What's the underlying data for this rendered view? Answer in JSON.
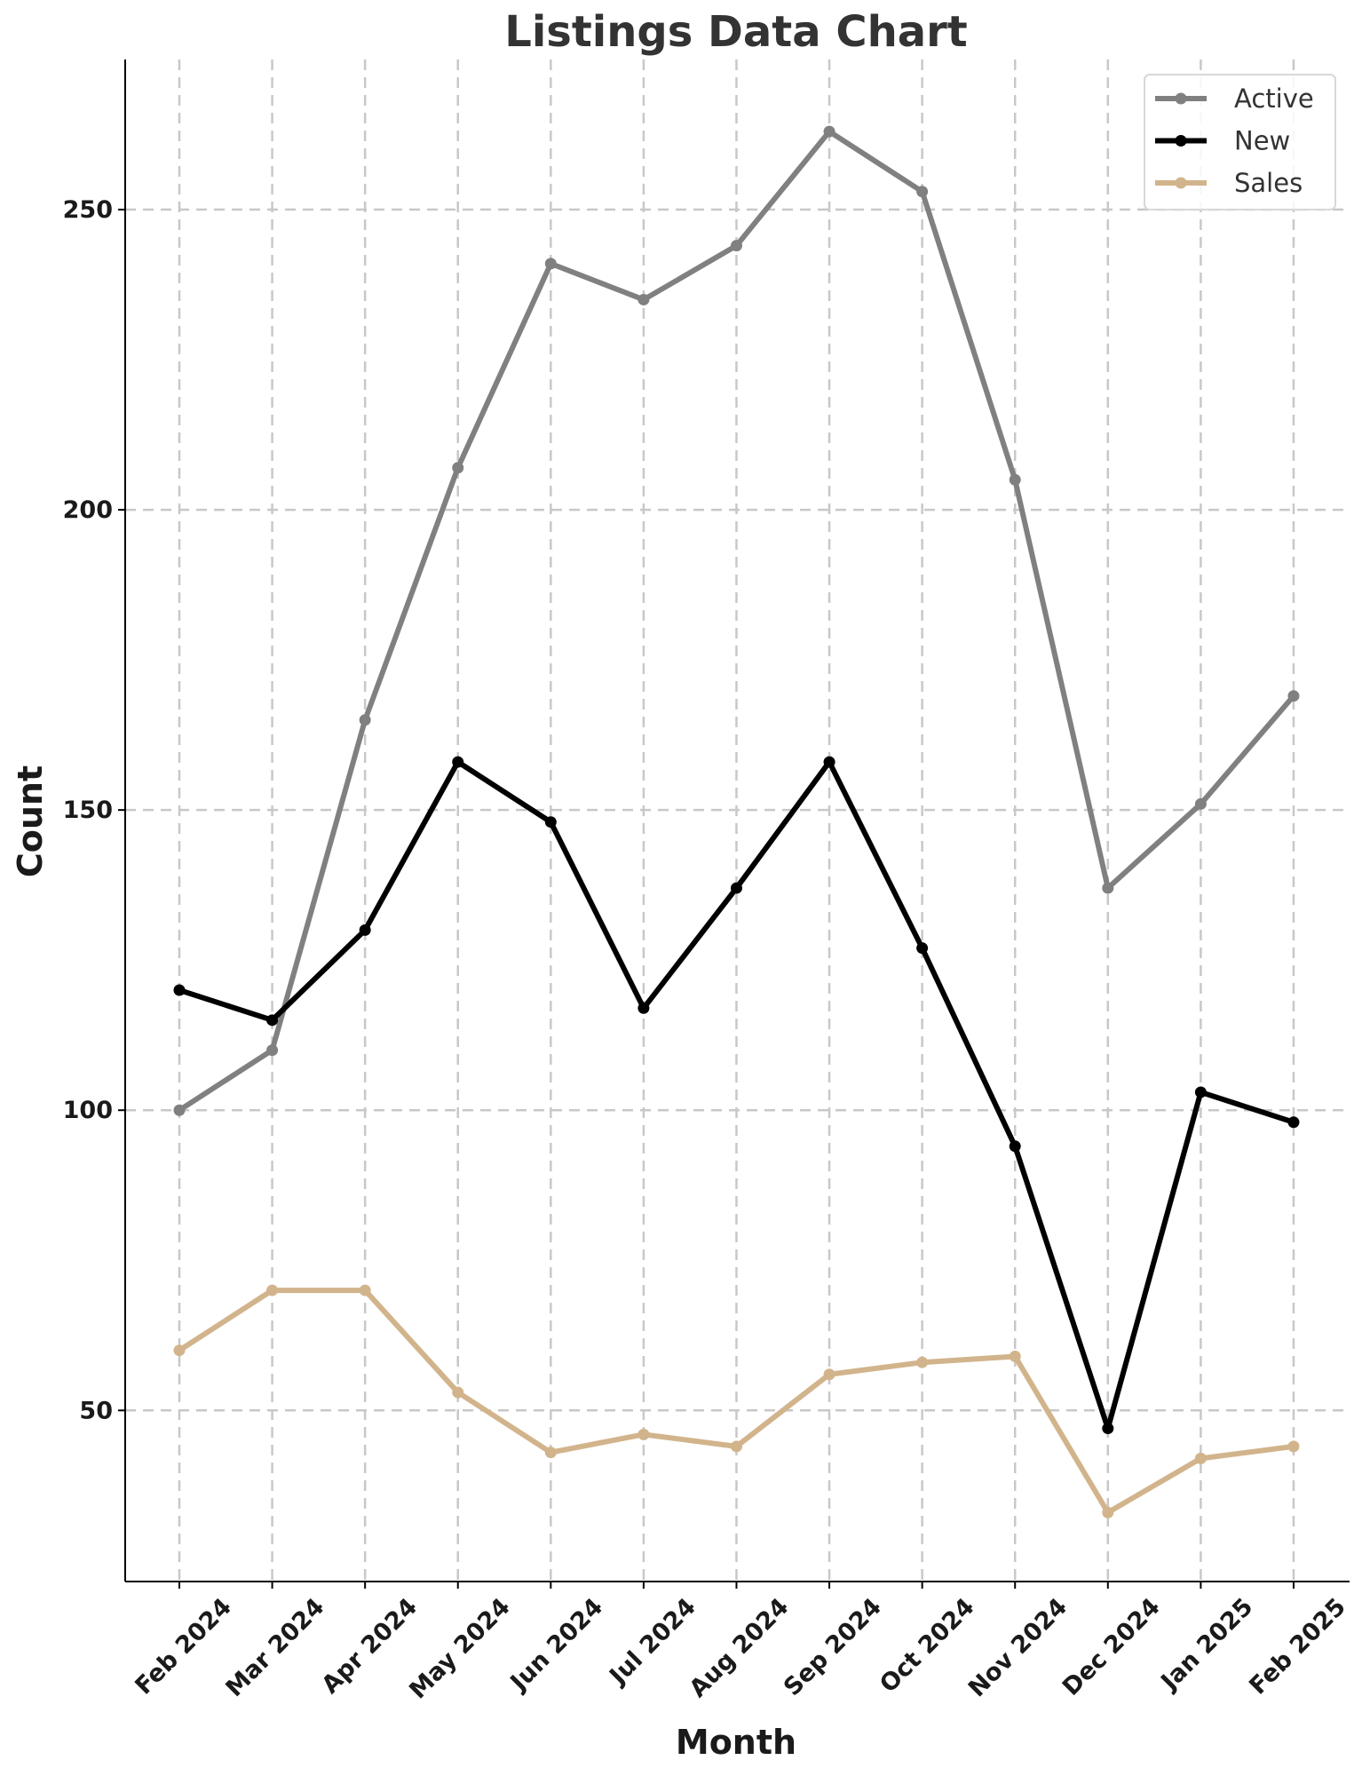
{
  "chart_data": {
    "type": "line",
    "title": "Listings Data Chart",
    "xlabel": "Month",
    "ylabel": "Count",
    "categories": [
      "Feb 2024",
      "Mar 2024",
      "Apr 2024",
      "May 2024",
      "Jun 2024",
      "Jul 2024",
      "Aug 2024",
      "Sep 2024",
      "Oct 2024",
      "Nov 2024",
      "Dec 2024",
      "Jan 2025",
      "Feb 2025"
    ],
    "ylim": [
      21.5,
      275
    ],
    "yticks": [
      "50",
      "100",
      "150",
      "200",
      "250"
    ],
    "grid": true,
    "legend_position": "top-right",
    "series": [
      {
        "name": "Active",
        "color": "#808080",
        "values": [
          100,
          110,
          165,
          207,
          241,
          235,
          244,
          263,
          253,
          205,
          137,
          151,
          169
        ]
      },
      {
        "name": "New",
        "color": "#000000",
        "values": [
          120,
          115,
          130,
          158,
          148,
          117,
          137,
          158,
          127,
          94,
          47,
          103,
          98
        ]
      },
      {
        "name": "Sales",
        "color": "#d2b48c",
        "values": [
          60,
          70,
          70,
          53,
          43,
          46,
          44,
          56,
          58,
          59,
          33,
          42,
          44
        ]
      }
    ]
  }
}
